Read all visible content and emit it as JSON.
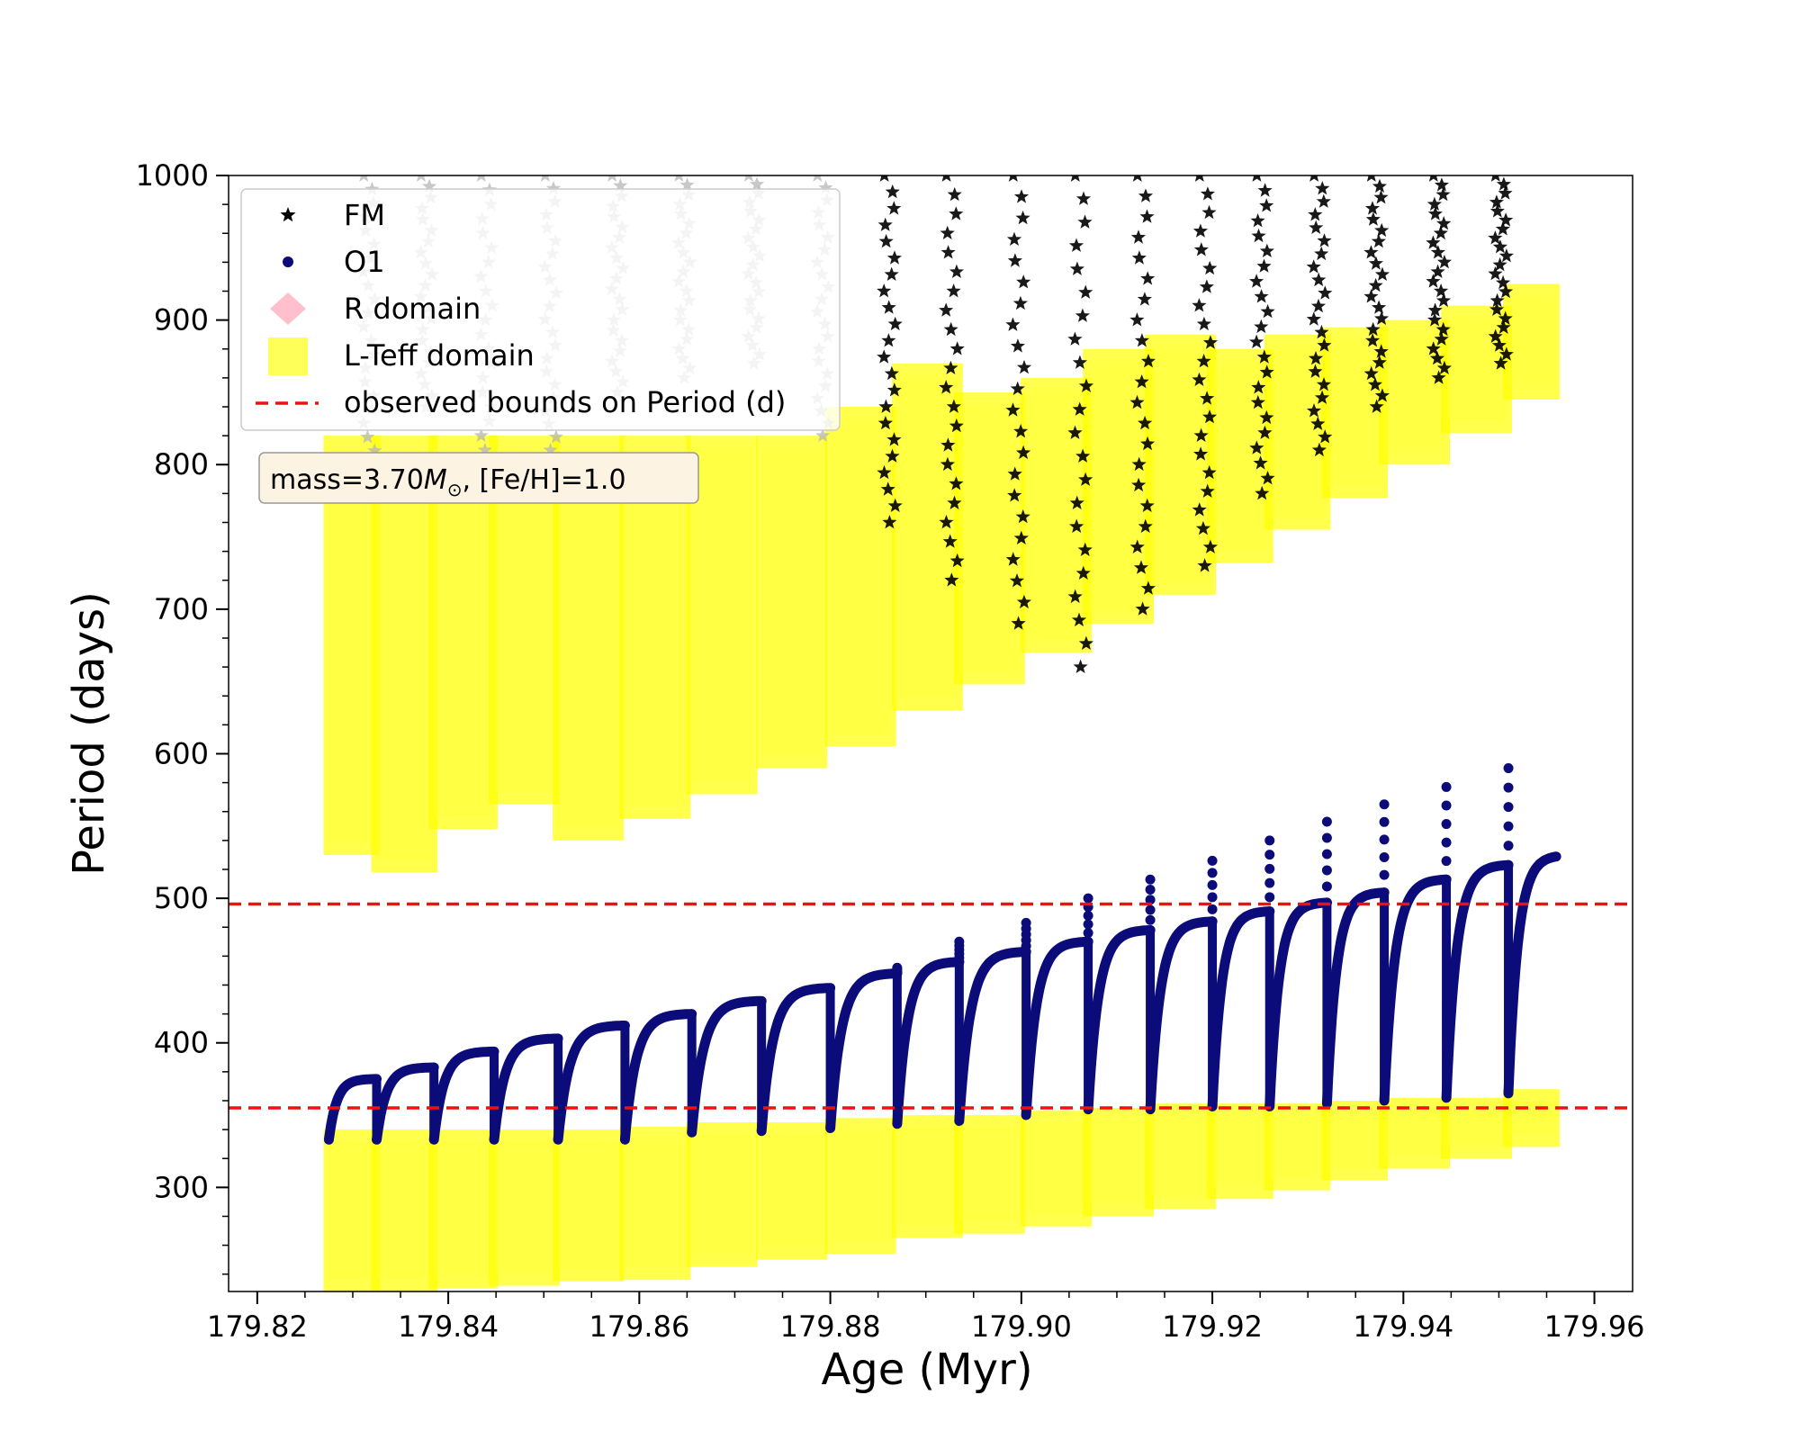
{
  "chart_data": {
    "type": "scatter",
    "xlabel": "Age (Myr)",
    "ylabel": "Period (days)",
    "xlim": [
      179.817,
      179.964
    ],
    "ylim": [
      228,
      1000
    ],
    "xticks": [
      {
        "value": 179.82,
        "label": "179.82"
      },
      {
        "value": 179.84,
        "label": "179.84"
      },
      {
        "value": 179.86,
        "label": "179.86"
      },
      {
        "value": 179.88,
        "label": "179.88"
      },
      {
        "value": 179.9,
        "label": "179.90"
      },
      {
        "value": 179.92,
        "label": "179.92"
      },
      {
        "value": 179.94,
        "label": "179.94"
      },
      {
        "value": 179.96,
        "label": "179.96"
      }
    ],
    "yticks": [
      {
        "value": 300,
        "label": "300"
      },
      {
        "value": 400,
        "label": "400"
      },
      {
        "value": 500,
        "label": "500"
      },
      {
        "value": 600,
        "label": "600"
      },
      {
        "value": 700,
        "label": "700"
      },
      {
        "value": 800,
        "label": "800"
      },
      {
        "value": 900,
        "label": "900"
      },
      {
        "value": 1000,
        "label": "1000"
      }
    ],
    "legend": {
      "placement": "top-left",
      "entries": [
        {
          "label": "FM",
          "marker": "star",
          "color": "#000000"
        },
        {
          "label": "O1",
          "marker": "circle",
          "color": "#0b0b7a"
        },
        {
          "label": "R domain",
          "marker": "diamond",
          "color": "#ffc0cb"
        },
        {
          "label": "L-Teff domain",
          "marker": "square",
          "color": "#ffff00"
        },
        {
          "label": "observed bounds on Period (d)",
          "marker": "dashed-line",
          "color": "#ee1111"
        }
      ]
    },
    "annotation": {
      "prefix": "mass=3.70",
      "symbol": "M",
      "sub": "⊙",
      "suffix": ", [Fe/H]=1.0"
    },
    "observed_bounds": [
      496,
      355
    ],
    "pulse_end_ages": [
      179.8325,
      179.8385,
      179.8448,
      179.8515,
      179.8585,
      179.8655,
      179.8728,
      179.88,
      179.887,
      179.8935,
      179.9005,
      179.907,
      179.9135,
      179.92,
      179.926,
      179.932,
      179.938,
      179.9445,
      179.951
    ],
    "first_pulse_start_age": 179.8275,
    "last_segment_end_age": 179.956,
    "o1_minima": [
      333,
      333,
      333,
      333,
      333,
      338,
      339,
      341,
      344,
      346,
      350,
      354,
      354,
      356,
      356,
      358,
      360,
      362,
      365
    ],
    "o1_maxima": [
      375,
      383,
      394,
      403,
      412,
      420,
      429,
      438,
      448,
      456,
      463,
      470,
      478,
      484,
      491,
      497,
      504,
      513,
      523,
      530
    ],
    "o1_spikes": [
      null,
      null,
      null,
      null,
      null,
      null,
      null,
      null,
      452,
      470,
      483,
      500,
      513,
      526,
      540,
      553,
      565,
      577,
      590
    ],
    "fm_minima": [
      800,
      840,
      790,
      810,
      850,
      860,
      870,
      820,
      760,
      720,
      690,
      660,
      700,
      730,
      780,
      810,
      840,
      860,
      870
    ],
    "fm_colors": [
      "#b5b5b5",
      "#b5b5b5",
      "#b5b5b5",
      "#b5b5b5",
      "#b5b5b5",
      "#b5b5b5",
      "#b5b5b5",
      "#b5b5b5",
      "#000000",
      "#000000",
      "#000000",
      "#000000",
      "#000000",
      "#000000",
      "#000000",
      "#000000",
      "#000000",
      "#000000",
      "#000000"
    ],
    "lteff_upper_blocks": [
      [
        530,
        820
      ],
      [
        518,
        820
      ],
      [
        548,
        820
      ],
      [
        565,
        820
      ],
      [
        540,
        820
      ],
      [
        555,
        820
      ],
      [
        572,
        820
      ],
      [
        590,
        820
      ],
      [
        605,
        840
      ],
      [
        630,
        870
      ],
      [
        648,
        850
      ],
      [
        670,
        860
      ],
      [
        690,
        880
      ],
      [
        710,
        890
      ],
      [
        732,
        880
      ],
      [
        755,
        890
      ],
      [
        777,
        895
      ],
      [
        800,
        900
      ],
      [
        822,
        910
      ],
      [
        845,
        925
      ]
    ],
    "lteff_lower_blocks": [
      [
        228,
        340
      ],
      [
        228,
        340
      ],
      [
        230,
        340
      ],
      [
        232,
        340
      ],
      [
        235,
        340
      ],
      [
        236,
        342
      ],
      [
        245,
        345
      ],
      [
        250,
        345
      ],
      [
        254,
        348
      ],
      [
        265,
        350
      ],
      [
        268,
        350
      ],
      [
        273,
        353
      ],
      [
        280,
        355
      ],
      [
        285,
        358
      ],
      [
        292,
        358
      ],
      [
        298,
        358
      ],
      [
        305,
        360
      ],
      [
        313,
        362
      ],
      [
        320,
        362
      ],
      [
        328,
        368
      ]
    ]
  }
}
